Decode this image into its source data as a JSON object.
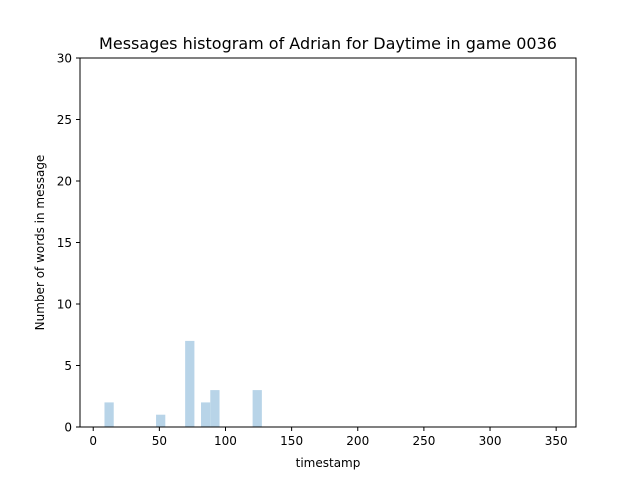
{
  "chart_data": {
    "type": "bar",
    "title": "Messages histogram of Adrian for Daytime in game 0036",
    "xlabel": "timestamp",
    "ylabel": "Number of words in message",
    "xlim": [
      -10,
      365
    ],
    "ylim": [
      0,
      30
    ],
    "xticks": [
      0,
      50,
      100,
      150,
      200,
      250,
      300,
      350
    ],
    "yticks": [
      0,
      5,
      10,
      15,
      20,
      25,
      30
    ],
    "bar_width": 7,
    "bar_color": "#b8d4e8",
    "grid": false,
    "bars": [
      {
        "x": 12,
        "value": 2
      },
      {
        "x": 51,
        "value": 1
      },
      {
        "x": 73,
        "value": 7
      },
      {
        "x": 85,
        "value": 2
      },
      {
        "x": 92,
        "value": 3
      },
      {
        "x": 124,
        "value": 3
      }
    ]
  }
}
